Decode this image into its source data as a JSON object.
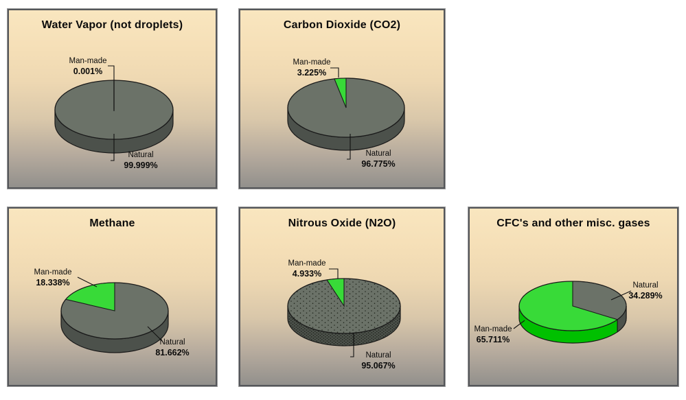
{
  "page_background": "#ffffff",
  "colors": {
    "man_made_green_top": "#38da38",
    "man_made_green_side": "#00c000",
    "natural_gray_top": "#6b7268",
    "natural_gray_side": "#4c514b",
    "stipple_dot": "#23281f",
    "outline": "#1a1a1a",
    "leader_line": "#111111",
    "panel_gradient_top": "#f9e6bf",
    "panel_gradient_bottom": "#92908c",
    "panel_border": "#54565a",
    "text": "#0b0b0b"
  },
  "chart_data": [
    {
      "type": "pie",
      "title": "Water Vapor (not droplets)",
      "units": "percent",
      "legend_position": "callout-labels",
      "slices": [
        {
          "label": "Man-made",
          "value": 0.001,
          "display": "0.001%"
        },
        {
          "label": "Natural",
          "value": 99.999,
          "display": "99.999%"
        }
      ]
    },
    {
      "type": "pie",
      "title": "Carbon Dioxide (CO2)",
      "units": "percent",
      "legend_position": "callout-labels",
      "slices": [
        {
          "label": "Man-made",
          "value": 3.225,
          "display": "3.225%"
        },
        {
          "label": "Natural",
          "value": 96.775,
          "display": "96.775%"
        }
      ]
    },
    {
      "type": "pie",
      "title": "Methane",
      "units": "percent",
      "legend_position": "callout-labels",
      "slices": [
        {
          "label": "Man-made",
          "value": 18.338,
          "display": "18.338%"
        },
        {
          "label": "Natural",
          "value": 81.662,
          "display": "81.662%"
        }
      ]
    },
    {
      "type": "pie",
      "title": "Nitrous Oxide (N2O)",
      "units": "percent",
      "legend_position": "callout-labels",
      "texture": "stippled",
      "slices": [
        {
          "label": "Man-made",
          "value": 4.933,
          "display": "4.933%"
        },
        {
          "label": "Natural",
          "value": 95.067,
          "display": "95.067%"
        }
      ]
    },
    {
      "type": "pie",
      "title": "CFC's and other misc. gases",
      "units": "percent",
      "legend_position": "callout-labels",
      "slices": [
        {
          "label": "Man-made",
          "value": 65.711,
          "display": "65.711%"
        },
        {
          "label": "Natural",
          "value": 34.289,
          "display": "34.289%"
        }
      ]
    }
  ]
}
